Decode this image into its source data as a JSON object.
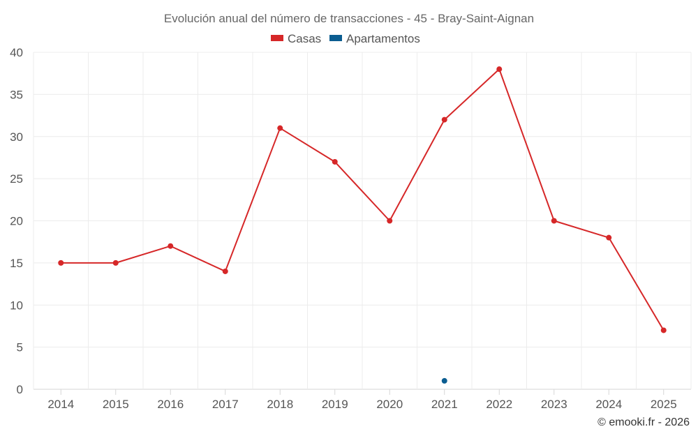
{
  "chart_data": {
    "type": "line",
    "title": "Evolución anual del número de transacciones - 45 - Bray-Saint-Aignan",
    "categories": [
      "2014",
      "2015",
      "2016",
      "2017",
      "2018",
      "2019",
      "2020",
      "2021",
      "2022",
      "2023",
      "2024",
      "2025"
    ],
    "series": [
      {
        "name": "Casas",
        "color": "#d62728",
        "values": [
          15,
          15,
          17,
          14,
          31,
          27,
          20,
          32,
          38,
          20,
          18,
          7
        ]
      },
      {
        "name": "Apartamentos",
        "color": "#0b5d91",
        "values": [
          null,
          null,
          null,
          null,
          null,
          null,
          null,
          1,
          null,
          null,
          null,
          null
        ]
      }
    ],
    "y_ticks": [
      0,
      5,
      10,
      15,
      20,
      25,
      30,
      35,
      40
    ],
    "ylim": [
      0,
      40
    ],
    "grid": true,
    "legend_position": "top-center",
    "xlabel": "",
    "ylabel": ""
  },
  "credit": "© emooki.fr - 2026"
}
